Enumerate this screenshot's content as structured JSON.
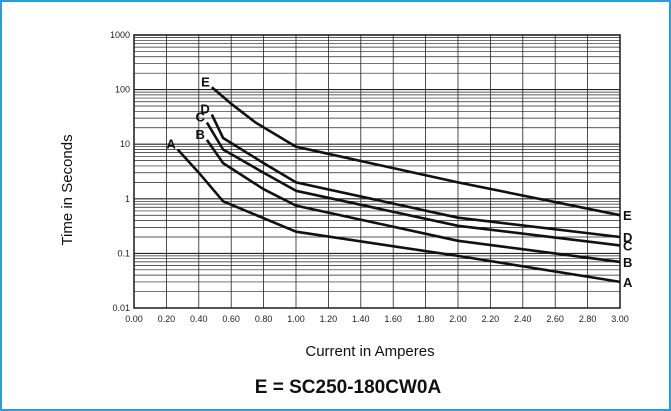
{
  "chart_data": {
    "type": "line",
    "xlabel": "Current in Amperes",
    "ylabel": "Time in Seconds",
    "xlim": [
      0,
      3.0
    ],
    "ylim": [
      0.01,
      1000
    ],
    "yscale": "log",
    "grid": true,
    "x_ticks": [
      "0.00",
      "0.20",
      "0.40",
      "0.60",
      "0.80",
      "1.00",
      "1.20",
      "1.40",
      "1.60",
      "1.80",
      "2.00",
      "2.20",
      "2.40",
      "2.60",
      "2.80",
      "3.00"
    ],
    "y_ticks": [
      "1000",
      "100",
      "10",
      "1",
      "0.1",
      "0.01"
    ],
    "series": [
      {
        "name": "A",
        "x": [
          0.27,
          0.4,
          0.55,
          1.0,
          2.0,
          3.0
        ],
        "y": [
          8,
          3,
          0.9,
          0.25,
          0.09,
          0.03
        ]
      },
      {
        "name": "B",
        "x": [
          0.45,
          0.55,
          0.8,
          1.0,
          2.0,
          3.0
        ],
        "y": [
          12,
          4.5,
          1.5,
          0.75,
          0.17,
          0.07
        ]
      },
      {
        "name": "C",
        "x": [
          0.45,
          0.55,
          0.8,
          1.0,
          2.0,
          3.0
        ],
        "y": [
          25,
          8,
          3,
          1.4,
          0.32,
          0.14
        ]
      },
      {
        "name": "D",
        "x": [
          0.48,
          0.55,
          0.8,
          1.0,
          2.0,
          3.0
        ],
        "y": [
          35,
          13,
          4.5,
          2,
          0.45,
          0.2
        ]
      },
      {
        "name": "E",
        "x": [
          0.48,
          0.6,
          0.75,
          1.0,
          2.0,
          3.0
        ],
        "y": [
          110,
          55,
          25,
          9,
          2,
          0.5
        ]
      }
    ]
  },
  "footer_text": "E = SC250-180CW0A"
}
